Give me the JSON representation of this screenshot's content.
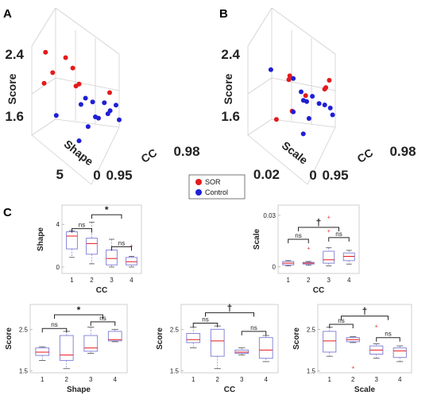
{
  "colors": {
    "sor": "#e41a1c",
    "control": "#1f1fd6",
    "box": "#7a7ad6",
    "median": "#e41a1c",
    "outlier": "#e41a1c"
  },
  "legend": [
    {
      "label": "SOR",
      "color": "#e41a1c"
    },
    {
      "label": "Control",
      "color": "#1f1fd6"
    }
  ],
  "chart_data": [
    {
      "panel": "A",
      "type": "scatter",
      "zlabel": "Score",
      "xlabel": "CC",
      "ylabel": "Shape",
      "z_ticks": [
        "2.4",
        "1.6"
      ],
      "x_ticks": [
        "0.95",
        "0.98"
      ],
      "y_ticks": [
        "0",
        "5"
      ],
      "series": [
        {
          "name": "SOR",
          "points": [
            [
              0.955,
              4.8,
              2.58
            ],
            [
              0.957,
              4.2,
              2.32
            ],
            [
              0.952,
              3.6,
              2.16
            ],
            [
              0.958,
              1.8,
              2.42
            ],
            [
              0.96,
              1.2,
              2.28
            ],
            [
              0.962,
              0.8,
              2.08
            ],
            [
              0.963,
              2.0,
              2.1
            ],
            [
              0.975,
              0.5,
              2.0
            ]
          ]
        },
        {
          "name": "Control",
          "points": [
            [
              0.958,
              3.9,
              1.8
            ],
            [
              0.968,
              2.4,
              1.98
            ],
            [
              0.97,
              1.8,
              1.92
            ],
            [
              0.972,
              2.2,
              1.76
            ],
            [
              0.974,
              1.2,
              1.9
            ],
            [
              0.976,
              0.9,
              1.8
            ],
            [
              0.978,
              0.6,
              1.86
            ],
            [
              0.98,
              0.9,
              1.7
            ],
            [
              0.973,
              2.0,
              1.74
            ],
            [
              0.965,
              1.9,
              1.88
            ],
            [
              0.967,
              1.3,
              1.6
            ],
            [
              0.976,
              1.4,
              1.78
            ],
            [
              0.962,
              0.8,
              1.4
            ]
          ]
        }
      ]
    },
    {
      "panel": "B",
      "type": "scatter",
      "zlabel": "Score",
      "xlabel": "CC",
      "ylabel": "Scale",
      "z_ticks": [
        "2.4",
        "1.6"
      ],
      "x_ticks": [
        "0.95",
        "0.98"
      ],
      "y_ticks": [
        "0",
        "0.02"
      ],
      "series": [
        {
          "name": "SOR",
          "points": [
            [
              0.96,
              0.004,
              2.18
            ],
            [
              0.965,
              0.015,
              2.24
            ],
            [
              0.97,
              0.01,
              2.02
            ],
            [
              0.978,
              0.008,
              2.12
            ],
            [
              0.98,
              0.009,
              2.22
            ],
            [
              0.958,
              0.012,
              1.72
            ],
            [
              0.962,
              0.006,
              1.78
            ],
            [
              0.975,
              0.003,
              2.05
            ]
          ]
        },
        {
          "name": "Control",
          "points": [
            [
              0.958,
              0.017,
              2.36
            ],
            [
              0.966,
              0.013,
              2.24
            ],
            [
              0.968,
              0.01,
              2.06
            ],
            [
              0.97,
              0.012,
              1.98
            ],
            [
              0.972,
              0.008,
              2.0
            ],
            [
              0.974,
              0.006,
              1.9
            ],
            [
              0.976,
              0.005,
              1.88
            ],
            [
              0.978,
              0.004,
              1.84
            ],
            [
              0.98,
              0.006,
              1.78
            ],
            [
              0.972,
              0.011,
              1.76
            ],
            [
              0.969,
              0.007,
              1.92
            ],
            [
              0.964,
              0.009,
              1.8
            ],
            [
              0.966,
              0.004,
              1.5
            ]
          ]
        }
      ]
    },
    {
      "panel": "C1",
      "type": "box",
      "xlabel": "CC",
      "ylabel": "Shape",
      "categories": [
        "1",
        "2",
        "3",
        "4"
      ],
      "ylim": [
        -0.6,
        5.8
      ],
      "yticks": [
        0,
        4
      ],
      "boxes": [
        {
          "whislo": 0.9,
          "q1": 1.7,
          "med": 2.9,
          "q3": 3.3,
          "whishi": 3.4,
          "fliers": []
        },
        {
          "whislo": 0.3,
          "q1": 1.2,
          "med": 2.2,
          "q3": 2.7,
          "whishi": 4.2,
          "fliers": []
        },
        {
          "whislo": 0.0,
          "q1": 0.2,
          "med": 0.8,
          "q3": 1.6,
          "whishi": 2.6,
          "fliers": []
        },
        {
          "whislo": 0.0,
          "q1": 0.2,
          "med": 0.5,
          "q3": 0.9,
          "whishi": 1.0,
          "fliers": [
            2.0
          ]
        }
      ],
      "brackets": [
        {
          "a": 1,
          "b": 2,
          "y": 3.6,
          "label": "ns"
        },
        {
          "a": 3,
          "b": 4,
          "y": 1.9,
          "label": "ns"
        },
        {
          "a": 2,
          "b": 3.5,
          "y": 4.9,
          "label": "*"
        }
      ]
    },
    {
      "panel": "C2",
      "type": "box",
      "xlabel": "CC",
      "ylabel": "Scale",
      "categories": [
        "1",
        "2",
        "3",
        "4"
      ],
      "ylim": [
        -0.004,
        0.036
      ],
      "yticks": [
        0,
        0.03
      ],
      "boxes": [
        {
          "whislo": 0.0005,
          "q1": 0.001,
          "med": 0.002,
          "q3": 0.003,
          "whishi": 0.0035,
          "fliers": []
        },
        {
          "whislo": 0.0008,
          "q1": 0.0015,
          "med": 0.002,
          "q3": 0.0025,
          "whishi": 0.003,
          "fliers": [
            0.011
          ]
        },
        {
          "whislo": 0.0005,
          "q1": 0.002,
          "med": 0.004,
          "q3": 0.009,
          "whishi": 0.011,
          "fliers": [
            0.029,
            0.021
          ]
        },
        {
          "whislo": 0.0015,
          "q1": 0.0035,
          "med": 0.006,
          "q3": 0.008,
          "whishi": 0.0095,
          "fliers": []
        }
      ],
      "brackets": [
        {
          "a": 1,
          "b": 2,
          "y": 0.016,
          "label": "ns"
        },
        {
          "a": 3,
          "b": 4,
          "y": 0.017,
          "label": "ns"
        },
        {
          "a": 1.5,
          "b": 3.5,
          "y": 0.023,
          "label": "†"
        }
      ]
    },
    {
      "panel": "C3",
      "type": "box",
      "xlabel": "Shape",
      "ylabel": "Score",
      "categories": [
        "1",
        "2",
        "3",
        "4"
      ],
      "ylim": [
        1.45,
        3.1
      ],
      "yticks": [
        1.5,
        2.5
      ],
      "boxes": [
        {
          "whislo": 1.75,
          "q1": 1.87,
          "med": 1.95,
          "q3": 2.05,
          "whishi": 2.08,
          "fliers": []
        },
        {
          "whislo": 1.55,
          "q1": 1.75,
          "med": 1.88,
          "q3": 2.35,
          "whishi": 2.45,
          "fliers": []
        },
        {
          "whislo": 1.92,
          "q1": 1.97,
          "med": 2.05,
          "q3": 2.35,
          "whishi": 2.55,
          "fliers": []
        },
        {
          "whislo": 2.2,
          "q1": 2.22,
          "med": 2.25,
          "q3": 2.45,
          "whishi": 2.5,
          "fliers": []
        }
      ],
      "brackets": [
        {
          "a": 1,
          "b": 2,
          "y": 2.52,
          "label": "ns"
        },
        {
          "a": 3,
          "b": 4,
          "y": 2.68,
          "label": "ns"
        },
        {
          "a": 1.5,
          "b": 3.5,
          "y": 2.85,
          "label": "*"
        }
      ]
    },
    {
      "panel": "C4",
      "type": "box",
      "xlabel": "CC",
      "ylabel": "Score",
      "categories": [
        "1",
        "2",
        "3",
        "4"
      ],
      "ylim": [
        1.45,
        3.1
      ],
      "yticks": [
        1.5,
        2.5
      ],
      "boxes": [
        {
          "whislo": 2.05,
          "q1": 2.18,
          "med": 2.25,
          "q3": 2.4,
          "whishi": 2.55,
          "fliers": []
        },
        {
          "whislo": 1.55,
          "q1": 1.85,
          "med": 2.22,
          "q3": 2.5,
          "whishi": 2.58,
          "fliers": []
        },
        {
          "whislo": 1.88,
          "q1": 1.92,
          "med": 1.95,
          "q3": 2.0,
          "whishi": 2.05,
          "fliers": []
        },
        {
          "whislo": 1.72,
          "q1": 1.8,
          "med": 2.0,
          "q3": 2.3,
          "whishi": 2.35,
          "fliers": []
        }
      ],
      "brackets": [
        {
          "a": 1,
          "b": 2,
          "y": 2.65,
          "label": "ns"
        },
        {
          "a": 3,
          "b": 4,
          "y": 2.45,
          "label": "ns"
        },
        {
          "a": 1.5,
          "b": 3.5,
          "y": 2.9,
          "label": "†"
        }
      ]
    },
    {
      "panel": "C5",
      "type": "box",
      "xlabel": "Scale",
      "ylabel": "Score",
      "categories": [
        "1",
        "2",
        "3",
        "4"
      ],
      "ylim": [
        1.45,
        3.1
      ],
      "yticks": [
        1.5,
        2.5
      ],
      "boxes": [
        {
          "whislo": 1.85,
          "q1": 1.95,
          "med": 2.22,
          "q3": 2.45,
          "whishi": 2.55,
          "fliers": []
        },
        {
          "whislo": 2.18,
          "q1": 2.2,
          "med": 2.25,
          "q3": 2.3,
          "whishi": 2.32,
          "fliers": [
            1.58
          ]
        },
        {
          "whislo": 1.8,
          "q1": 1.9,
          "med": 2.0,
          "q3": 2.1,
          "whishi": 2.15,
          "fliers": [
            2.58
          ]
        },
        {
          "whislo": 1.72,
          "q1": 1.82,
          "med": 1.98,
          "q3": 2.05,
          "whishi": 2.1,
          "fliers": []
        }
      ],
      "brackets": [
        {
          "a": 1,
          "b": 2,
          "y": 2.62,
          "label": "ns"
        },
        {
          "a": 3,
          "b": 4,
          "y": 2.3,
          "label": "ns"
        },
        {
          "a": 1.5,
          "b": 3.5,
          "y": 2.82,
          "label": "†"
        }
      ]
    }
  ],
  "panel_letters": [
    "A",
    "B",
    "C"
  ]
}
